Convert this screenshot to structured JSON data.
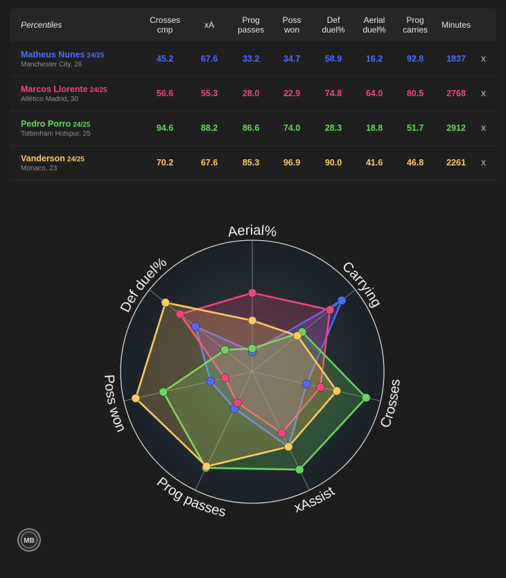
{
  "table": {
    "corner_label": "Percentiles",
    "columns": [
      "Crosses\ncmp",
      "xA",
      "Prog\npasses",
      "Poss\nwon",
      "Def\nduel%",
      "Aerial\nduel%",
      "Prog\ncarries",
      "Minutes"
    ],
    "remove_label": "x",
    "players": [
      {
        "name": "Matheus Nunes",
        "season": "24/25",
        "club": "Manchester City, 26",
        "color": "#4d6bff",
        "values": [
          "45.2",
          "67.6",
          "33.2",
          "34.7",
          "58.9",
          "16.2",
          "92.8",
          "1837"
        ]
      },
      {
        "name": "Marcos Llorente",
        "season": "24/25",
        "club": "Atlético Madrid, 30",
        "color": "#f0457a",
        "values": [
          "56.6",
          "55.3",
          "28.0",
          "22.9",
          "74.8",
          "64.0",
          "80.5",
          "2768"
        ]
      },
      {
        "name": "Pedro Porro",
        "season": "24/25",
        "club": "Tottenham Hotspur, 25",
        "color": "#62d958",
        "values": [
          "94.6",
          "88.2",
          "86.6",
          "74.0",
          "28.3",
          "18.8",
          "51.7",
          "2912"
        ]
      },
      {
        "name": "Vanderson",
        "season": "24/25",
        "club": "Monaco, 23",
        "color": "#ffc861",
        "values": [
          "70.2",
          "67.6",
          "85.3",
          "96.9",
          "90.0",
          "41.6",
          "46.8",
          "2261"
        ]
      }
    ]
  },
  "chart_data": {
    "type": "radar",
    "axes": [
      "Aerial%",
      "Carrying",
      "Crosses",
      "xAssist",
      "Prog passes",
      "Poss won",
      "Def duel%"
    ],
    "range": [
      0,
      100
    ],
    "series": [
      {
        "name": "Matheus Nunes",
        "color": "#4d6bff",
        "values": [
          16.2,
          92.8,
          45.2,
          67.6,
          33.2,
          34.7,
          58.9
        ]
      },
      {
        "name": "Marcos Llorente",
        "color": "#f0457a",
        "values": [
          64.0,
          80.5,
          56.6,
          55.3,
          28.0,
          22.9,
          74.8
        ]
      },
      {
        "name": "Pedro Porro",
        "color": "#62d958",
        "values": [
          18.8,
          51.7,
          94.6,
          88.2,
          86.6,
          74.0,
          28.3
        ]
      },
      {
        "name": "Vanderson",
        "color": "#ffc861",
        "values": [
          41.6,
          46.8,
          70.2,
          67.6,
          85.3,
          96.9,
          90.0
        ]
      }
    ]
  },
  "logo": {
    "text": "MB"
  }
}
